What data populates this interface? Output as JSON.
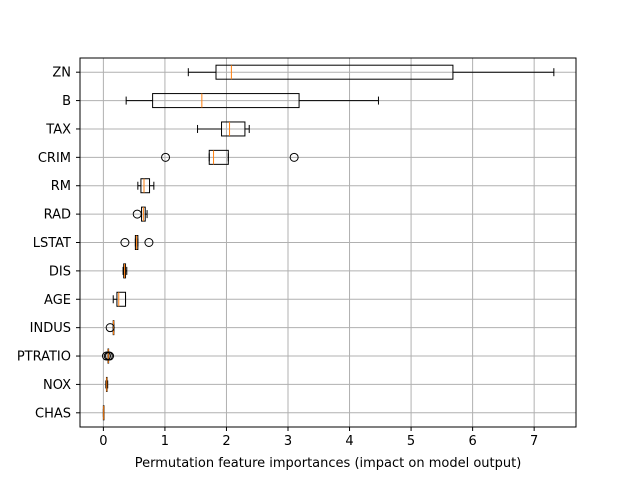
{
  "chart_data": {
    "type": "boxplot",
    "orientation": "horizontal",
    "xlabel": "Permutation feature importances (impact on model output)",
    "ylabel": "",
    "title": "",
    "xlim": [
      -0.38,
      7.68
    ],
    "xticks": [
      0,
      1,
      2,
      3,
      4,
      5,
      6,
      7
    ],
    "grid": true,
    "colors": {
      "box": "#000000",
      "median": "#ff7f0e",
      "grid": "#b0b0b0"
    },
    "categories": [
      "ZN",
      "B",
      "TAX",
      "CRIM",
      "RM",
      "RAD",
      "LSTAT",
      "DIS",
      "AGE",
      "INDUS",
      "PTRATIO",
      "NOX",
      "CHAS"
    ],
    "boxes": [
      {
        "label": "ZN",
        "whislo": 1.38,
        "q1": 1.83,
        "med": 2.08,
        "q3": 5.68,
        "whishi": 7.32,
        "fliers": []
      },
      {
        "label": "B",
        "whislo": 0.37,
        "q1": 0.8,
        "med": 1.6,
        "q3": 3.18,
        "whishi": 4.47,
        "fliers": []
      },
      {
        "label": "TAX",
        "whislo": 1.53,
        "q1": 1.92,
        "med": 2.05,
        "q3": 2.3,
        "whishi": 2.37,
        "fliers": []
      },
      {
        "label": "CRIM",
        "whislo": 1.72,
        "q1": 1.72,
        "med": 1.79,
        "q3": 2.03,
        "whishi": 2.03,
        "fliers": [
          1.01,
          3.1
        ]
      },
      {
        "label": "RM",
        "whislo": 0.56,
        "q1": 0.61,
        "med": 0.66,
        "q3": 0.75,
        "whishi": 0.82,
        "fliers": []
      },
      {
        "label": "RAD",
        "whislo": 0.62,
        "q1": 0.62,
        "med": 0.65,
        "q3": 0.68,
        "whishi": 0.71,
        "fliers": [
          0.55
        ]
      },
      {
        "label": "LSTAT",
        "whislo": 0.52,
        "q1": 0.52,
        "med": 0.54,
        "q3": 0.56,
        "whishi": 0.56,
        "fliers": [
          0.35,
          0.74
        ]
      },
      {
        "label": "DIS",
        "whislo": 0.32,
        "q1": 0.33,
        "med": 0.345,
        "q3": 0.36,
        "whishi": 0.38,
        "fliers": []
      },
      {
        "label": "AGE",
        "whislo": 0.16,
        "q1": 0.22,
        "med": 0.25,
        "q3": 0.36,
        "whishi": 0.36,
        "fliers": []
      },
      {
        "label": "INDUS",
        "whislo": 0.16,
        "q1": 0.16,
        "med": 0.165,
        "q3": 0.17,
        "whishi": 0.17,
        "fliers": [
          0.11
        ]
      },
      {
        "label": "PTRATIO",
        "whislo": 0.075,
        "q1": 0.075,
        "med": 0.08,
        "q3": 0.085,
        "whishi": 0.085,
        "fliers": [
          0.05,
          0.08,
          0.1
        ]
      },
      {
        "label": "NOX",
        "whislo": 0.04,
        "q1": 0.05,
        "med": 0.055,
        "q3": 0.06,
        "whishi": 0.07,
        "fliers": []
      },
      {
        "label": "CHAS",
        "whislo": 0.0,
        "q1": 0.0,
        "med": 0.005,
        "q3": 0.01,
        "whishi": 0.01,
        "fliers": []
      }
    ]
  }
}
